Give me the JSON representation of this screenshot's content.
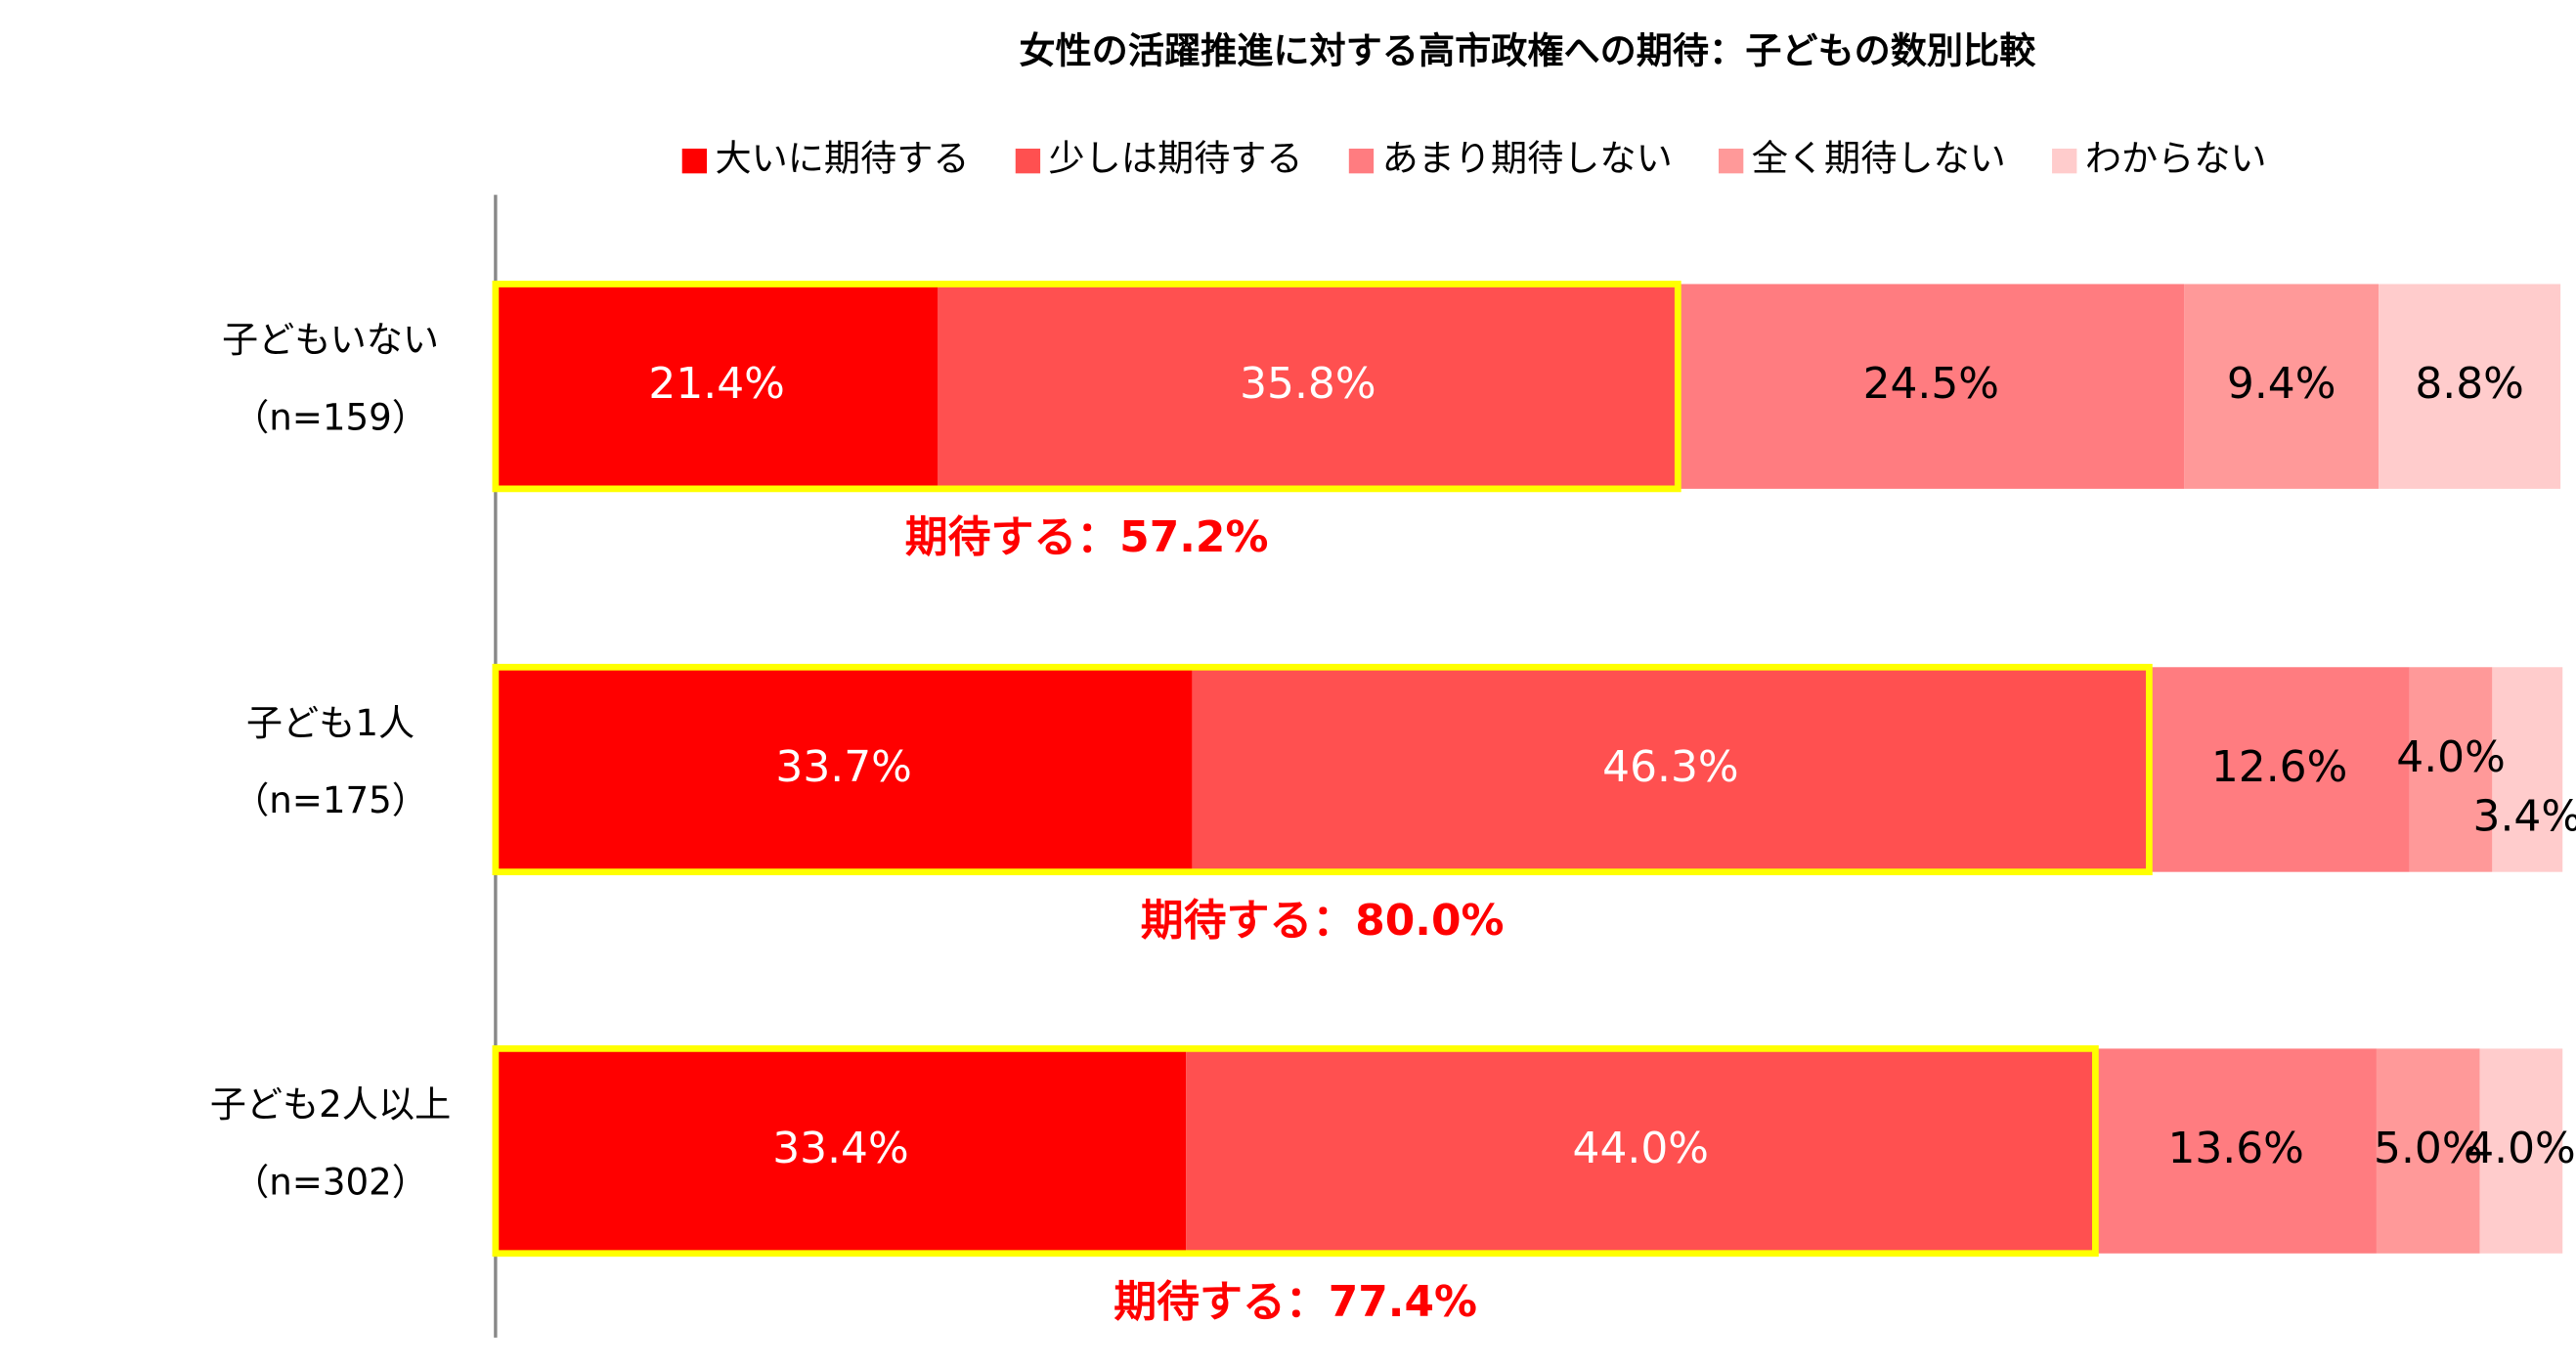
{
  "chart_data": {
    "type": "stacked-bar-horizontal",
    "title": "女性の活躍推進に対する高市政権への期待：子どもの数別比較",
    "categories": [
      "子どもいない",
      "子ども1人",
      "子ども2人以上"
    ],
    "category_notes": [
      "（n=159）",
      "（n=175）",
      "（n=302）"
    ],
    "xlim": [
      0,
      100
    ],
    "series": [
      {
        "name": "大いに期待する",
        "color": "#ff0000",
        "values": [
          21.4,
          33.7,
          33.4
        ],
        "value_labels": [
          "21.4%",
          "33.7%",
          "33.4%"
        ]
      },
      {
        "name": "少しは期待する",
        "color": "#ff5050",
        "values": [
          35.8,
          46.3,
          44.0
        ],
        "value_labels": [
          "35.8%",
          "46.3%",
          "44.0%"
        ]
      },
      {
        "name": "あまり期待しない",
        "color": "#ff7c80",
        "values": [
          24.5,
          12.6,
          13.6
        ],
        "value_labels": [
          "24.5%",
          "12.6%",
          "13.6%"
        ]
      },
      {
        "name": "全く期待しない",
        "color": "#ff9999",
        "values": [
          9.4,
          4.0,
          5.0
        ],
        "value_labels": [
          "9.4%",
          "4.0%",
          "5.0%"
        ]
      },
      {
        "name": "わからない",
        "color": "#ffcccc",
        "values": [
          8.8,
          3.4,
          4.0
        ],
        "value_labels": [
          "8.8%",
          "3.4%",
          "4.0%"
        ]
      }
    ],
    "subtotal_labels": [
      "期待する：57.2%",
      "期待する：80.0%",
      "期待する：77.4%"
    ],
    "highlight_color": "#ffff00",
    "subtotal_color": "#ff0000"
  }
}
